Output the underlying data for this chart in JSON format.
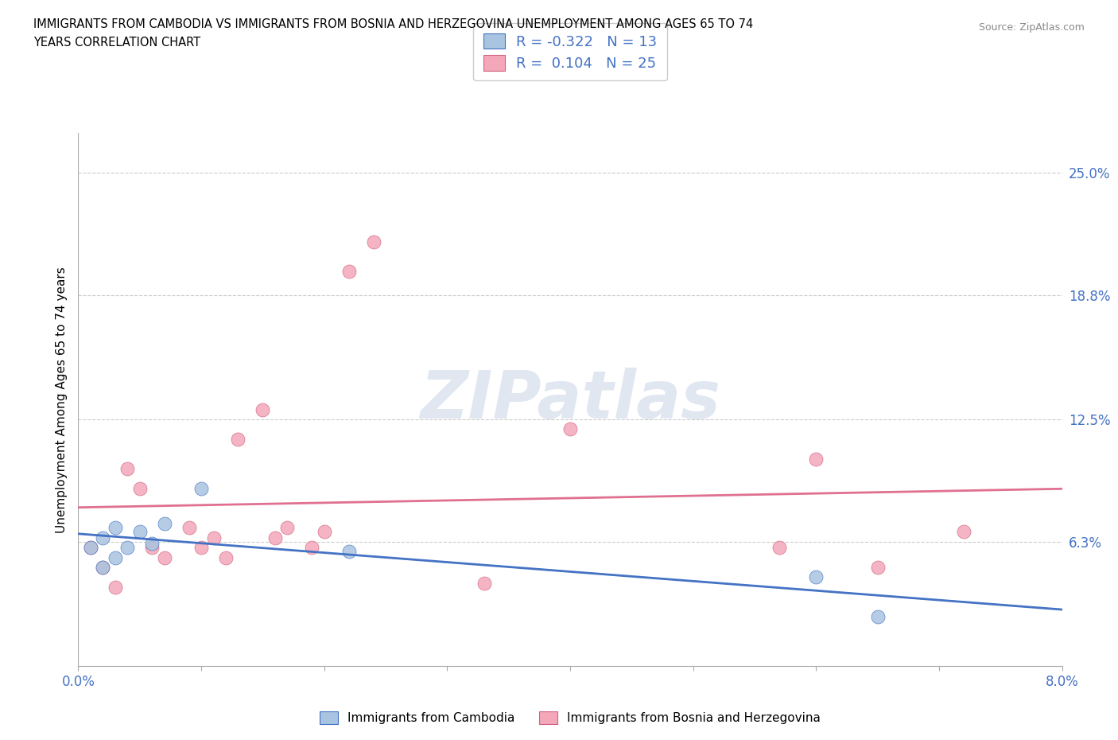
{
  "title_line1": "IMMIGRANTS FROM CAMBODIA VS IMMIGRANTS FROM BOSNIA AND HERZEGOVINA UNEMPLOYMENT AMONG AGES 65 TO 74",
  "title_line2": "YEARS CORRELATION CHART",
  "source": "Source: ZipAtlas.com",
  "ylabel": "Unemployment Among Ages 65 to 74 years",
  "xlim": [
    0.0,
    0.08
  ],
  "ylim": [
    0.0,
    0.27
  ],
  "ytick_positions": [
    0.0,
    0.063,
    0.125,
    0.188,
    0.25
  ],
  "ytick_labels": [
    "",
    "6.3%",
    "12.5%",
    "18.8%",
    "25.0%"
  ],
  "xtick_positions": [
    0.0,
    0.01,
    0.02,
    0.03,
    0.04,
    0.05,
    0.06,
    0.07,
    0.08
  ],
  "cambodia_fill": "#a8c4e0",
  "cambodia_edge": "#4472c4",
  "bosnia_fill": "#f4a7b9",
  "bosnia_edge": "#d06080",
  "reg_color_cambodia": "#4472c4",
  "reg_color_bosnia": "#e07090",
  "blue_text": "#4472c4",
  "watermark_text": "ZIPatlas",
  "watermark_color": "#ccd8e8",
  "legend_r1": "R = -0.322",
  "legend_n1": "N = 13",
  "legend_r2": "R =  0.104",
  "legend_n2": "N = 25",
  "label_cambodia": "Immigrants from Cambodia",
  "label_bosnia": "Immigrants from Bosnia and Herzegovina",
  "cambodia_x": [
    0.001,
    0.002,
    0.002,
    0.003,
    0.003,
    0.004,
    0.005,
    0.006,
    0.007,
    0.01,
    0.022,
    0.06,
    0.065
  ],
  "cambodia_y": [
    0.06,
    0.05,
    0.065,
    0.055,
    0.07,
    0.06,
    0.068,
    0.062,
    0.072,
    0.09,
    0.058,
    0.045,
    0.025
  ],
  "bosnia_x": [
    0.001,
    0.002,
    0.003,
    0.004,
    0.005,
    0.006,
    0.007,
    0.009,
    0.01,
    0.011,
    0.012,
    0.013,
    0.015,
    0.016,
    0.017,
    0.019,
    0.02,
    0.022,
    0.024,
    0.033,
    0.04,
    0.057,
    0.06,
    0.065,
    0.072
  ],
  "bosnia_y": [
    0.06,
    0.05,
    0.04,
    0.1,
    0.09,
    0.06,
    0.055,
    0.07,
    0.06,
    0.065,
    0.055,
    0.115,
    0.13,
    0.065,
    0.07,
    0.06,
    0.068,
    0.2,
    0.215,
    0.042,
    0.12,
    0.06,
    0.105,
    0.05,
    0.068
  ]
}
